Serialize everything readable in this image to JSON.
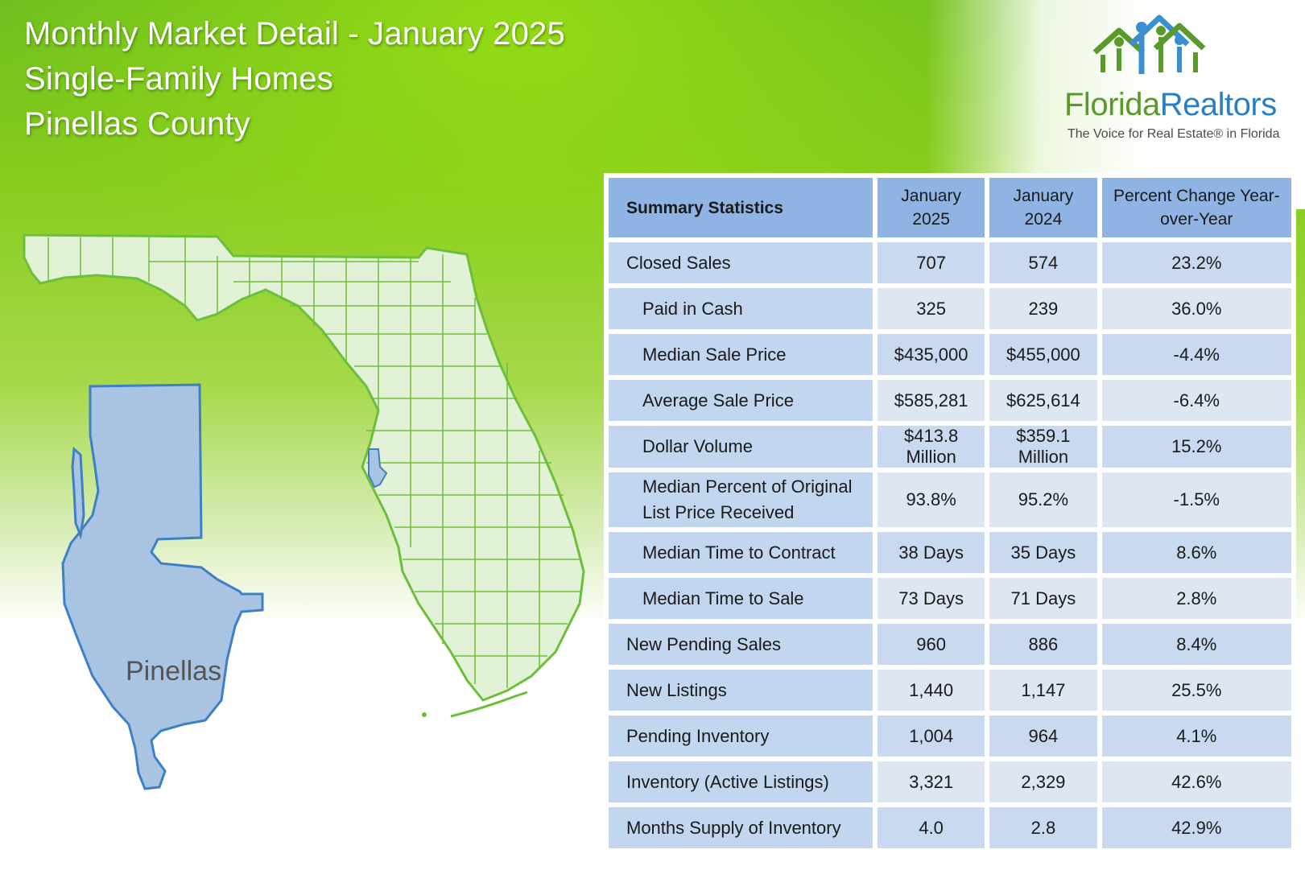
{
  "header": {
    "line1": "Monthly Market Detail - January 2025",
    "line2": "Single-Family Homes",
    "line3": "Pinellas County"
  },
  "logo": {
    "word_a": "Florida",
    "word_b": "Realtors",
    "tagline": "The Voice for Real Estate® in Florida",
    "icon": "houses-people-icon",
    "colors": {
      "green": "#5a9a2a",
      "blue": "#2a7fc0"
    }
  },
  "map": {
    "county_label": "Pinellas",
    "state_fill": "#e2f2d6",
    "state_stroke": "#6cbf3a",
    "county_fill": "#a9c4e2",
    "county_stroke": "#3f7fc4"
  },
  "table": {
    "headers": [
      "Summary Statistics",
      "January 2025",
      "January 2024",
      "Percent Change Year-over-Year"
    ],
    "rows": [
      {
        "label": "Closed Sales",
        "sub": false,
        "jan2025": "707",
        "jan2024": "574",
        "pct": "23.2%"
      },
      {
        "label": "Paid in Cash",
        "sub": true,
        "jan2025": "325",
        "jan2024": "239",
        "pct": "36.0%"
      },
      {
        "label": "Median Sale Price",
        "sub": true,
        "jan2025": "$435,000",
        "jan2024": "$455,000",
        "pct": "-4.4%"
      },
      {
        "label": "Average Sale Price",
        "sub": true,
        "jan2025": "$585,281",
        "jan2024": "$625,614",
        "pct": "-6.4%"
      },
      {
        "label": "Dollar Volume",
        "sub": true,
        "jan2025": "$413.8 Million",
        "jan2024": "$359.1 Million",
        "pct": "15.2%"
      },
      {
        "label": "Median Percent of Original List Price Received",
        "sub": true,
        "jan2025": "93.8%",
        "jan2024": "95.2%",
        "pct": "-1.5%"
      },
      {
        "label": "Median Time to Contract",
        "sub": true,
        "jan2025": "38 Days",
        "jan2024": "35 Days",
        "pct": "8.6%"
      },
      {
        "label": "Median Time to Sale",
        "sub": true,
        "jan2025": "73 Days",
        "jan2024": "71 Days",
        "pct": "2.8%"
      },
      {
        "label": "New Pending Sales",
        "sub": false,
        "jan2025": "960",
        "jan2024": "886",
        "pct": "8.4%"
      },
      {
        "label": "New Listings",
        "sub": false,
        "jan2025": "1,440",
        "jan2024": "1,147",
        "pct": "25.5%"
      },
      {
        "label": "Pending Inventory",
        "sub": false,
        "jan2025": "1,004",
        "jan2024": "964",
        "pct": "4.1%"
      },
      {
        "label": "Inventory (Active Listings)",
        "sub": false,
        "jan2025": "3,321",
        "jan2024": "2,329",
        "pct": "42.6%"
      },
      {
        "label": "Months Supply of Inventory",
        "sub": false,
        "jan2025": "4.0",
        "jan2024": "2.8",
        "pct": "42.9%"
      }
    ]
  }
}
